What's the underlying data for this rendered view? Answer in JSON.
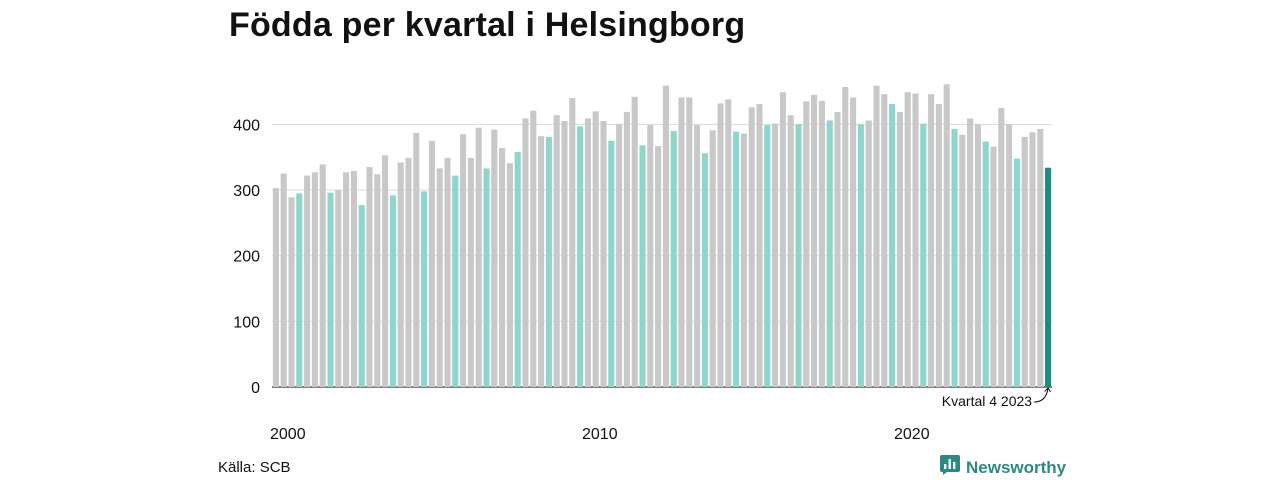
{
  "title": "Födda per kvartal i Helsingborg",
  "source": "Källa: SCB",
  "brand": {
    "name": "Newsworthy",
    "icon": "newsworthy-logo-icon"
  },
  "colors": {
    "default": "#c8c8c8",
    "highlight": "#8ed6cc",
    "latest": "#1f8b80",
    "brand": "#2a8a82",
    "grid": "#d9d9d9"
  },
  "chart_data": {
    "type": "bar",
    "title": "Födda per kvartal i Helsingborg",
    "xlabel": "",
    "ylabel": "",
    "ylim": [
      0,
      460
    ],
    "yticks": [
      "0",
      "100",
      "200",
      "300",
      "400"
    ],
    "ytick_values": [
      0,
      100,
      200,
      300,
      400
    ],
    "xticks": [
      "2000",
      "2010",
      "2020"
    ],
    "grid": true,
    "start": "2000 Q1",
    "highlight_quarter": 4,
    "annotation": "Kvartal 4 2023",
    "values": [
      303,
      325,
      289,
      295,
      322,
      327,
      339,
      296,
      300,
      327,
      329,
      277,
      335,
      324,
      353,
      292,
      342,
      349,
      387,
      298,
      375,
      333,
      349,
      322,
      385,
      349,
      395,
      333,
      392,
      364,
      341,
      358,
      409,
      421,
      382,
      381,
      414,
      405,
      440,
      397,
      409,
      420,
      405,
      375,
      400,
      419,
      442,
      368,
      399,
      367,
      459,
      390,
      441,
      441,
      399,
      356,
      391,
      432,
      438,
      389,
      386,
      426,
      431,
      399,
      401,
      449,
      414,
      400,
      435,
      445,
      436,
      406,
      419,
      457,
      441,
      400,
      406,
      459,
      446,
      431,
      419,
      449,
      447,
      401,
      446,
      431,
      461,
      393,
      384,
      409,
      400,
      374,
      366,
      425,
      400,
      348,
      381,
      388,
      393,
      334
    ]
  }
}
